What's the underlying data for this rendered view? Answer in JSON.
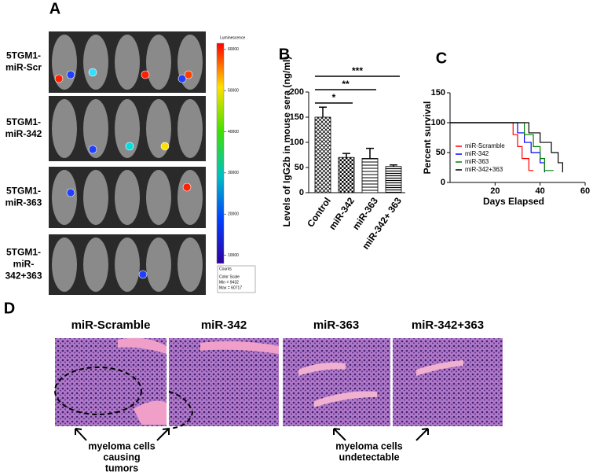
{
  "panel_labels": [
    "A",
    "B",
    "C",
    "D"
  ],
  "panel_a": {
    "row_labels": [
      [
        "5TGM1-",
        "miR-Scr"
      ],
      [
        "5TGM1-",
        "miR-342"
      ],
      [
        "5TGM1-",
        "miR-363"
      ],
      [
        "5TGM1-",
        "miR-",
        "342+363"
      ]
    ],
    "colorbar": {
      "title": "Luminescence",
      "lim": [
        8000,
        61500
      ],
      "ticks": [
        10000,
        20000,
        30000,
        40000,
        50000,
        60000
      ]
    },
    "footer": [
      "Counts",
      "Color Scale",
      "Min = 9432",
      "Max = 60717"
    ]
  },
  "chart_data": [
    {
      "type": "bar",
      "ylabel": "Levels of IgG2b in mouse sera (ng/ml)",
      "categories": [
        "Control",
        "miR-342",
        "miR-363",
        "miR-342+ 363"
      ],
      "values": [
        150,
        70,
        68,
        52
      ],
      "errors": [
        20,
        8,
        20,
        3
      ],
      "ylim": [
        0,
        200
      ],
      "yticks": [
        0,
        50,
        100,
        150,
        200
      ],
      "annotations": [
        "*",
        "**",
        "***"
      ]
    },
    {
      "type": "line",
      "xlabel": "Days Elapsed",
      "ylabel": "Percent survival",
      "xlim": [
        0,
        60
      ],
      "xticks": [
        20,
        40,
        60
      ],
      "ylim": [
        0,
        150
      ],
      "yticks": [
        0,
        50,
        100,
        150
      ],
      "series": [
        {
          "name": "miR-Scramble",
          "color": "#ff0000",
          "x": [
            0,
            28,
            30,
            32,
            35,
            37
          ],
          "values": [
            100,
            80,
            60,
            40,
            20,
            20
          ]
        },
        {
          "name": "miR-342",
          "color": "#0000ff",
          "x": [
            0,
            30,
            33,
            36,
            40,
            42
          ],
          "values": [
            100,
            83,
            67,
            50,
            33,
            17
          ]
        },
        {
          "name": "miR-363",
          "color": "#008000",
          "x": [
            0,
            33,
            37,
            40,
            42,
            46
          ],
          "values": [
            100,
            80,
            60,
            40,
            20,
            20
          ]
        },
        {
          "name": "miR-342+363",
          "color": "#000000",
          "x": [
            0,
            35,
            40,
            45,
            48,
            50
          ],
          "values": [
            100,
            83,
            67,
            50,
            33,
            17
          ]
        }
      ]
    }
  ],
  "panel_d": {
    "titles": [
      "miR-Scramble",
      "miR-342",
      "miR-363",
      "miR-342+363"
    ],
    "annotations": [
      [
        "myeloma cells",
        "causing",
        "tumors"
      ],
      [
        "myeloma cells",
        "undetectable"
      ]
    ]
  }
}
